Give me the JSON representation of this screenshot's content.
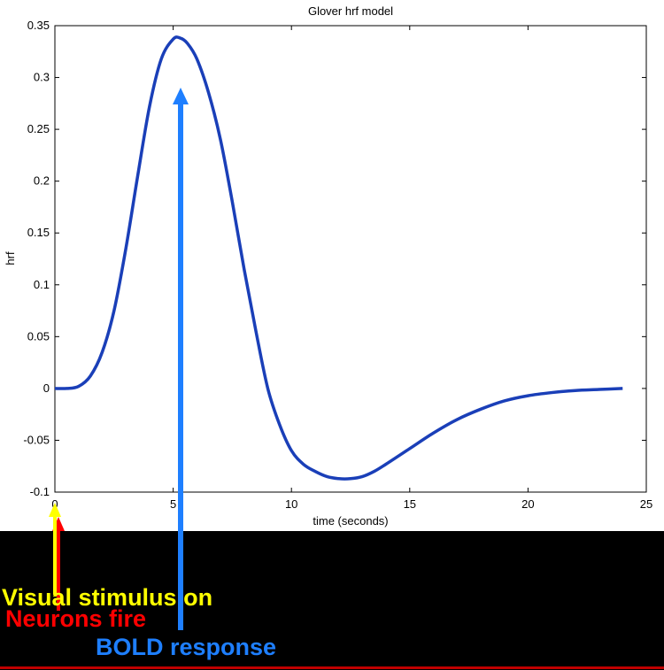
{
  "chart_data": {
    "type": "line",
    "title": "Glover hrf model",
    "xlabel": "time (seconds)",
    "ylabel": "hrf",
    "xlim": [
      0,
      25
    ],
    "ylim": [
      -0.1,
      0.35
    ],
    "grid": false,
    "x_ticks": [
      0,
      5,
      10,
      15,
      20,
      25
    ],
    "y_ticks": [
      -0.1,
      -0.05,
      0,
      0.05,
      0.1,
      0.15,
      0.2,
      0.25,
      0.3,
      0.35
    ],
    "x_tick_labels": [
      "0",
      "5",
      "10",
      "15",
      "20",
      "25"
    ],
    "y_tick_labels": [
      "-0.1",
      "-0.05",
      "0",
      "0.05",
      "0.1",
      "0.15",
      "0.2",
      "0.25",
      "0.3",
      "0.35"
    ],
    "series": [
      {
        "color": "#1a3fb8",
        "x": [
          0,
          0.5,
          1,
          1.5,
          2,
          2.5,
          3,
          3.5,
          4,
          4.5,
          5,
          5.3,
          5.6,
          6,
          6.5,
          7,
          7.5,
          8,
          8.5,
          9,
          9.5,
          10,
          10.5,
          11,
          11.5,
          12,
          12.5,
          13,
          13.5,
          14,
          15,
          16,
          17,
          18,
          19,
          20,
          21,
          22,
          23,
          24
        ],
        "y": [
          0,
          0,
          0.002,
          0.012,
          0.035,
          0.075,
          0.135,
          0.205,
          0.272,
          0.318,
          0.337,
          0.338,
          0.333,
          0.318,
          0.285,
          0.24,
          0.18,
          0.115,
          0.055,
          0.0,
          -0.035,
          -0.06,
          -0.073,
          -0.08,
          -0.085,
          -0.087,
          -0.087,
          -0.085,
          -0.08,
          -0.073,
          -0.058,
          -0.043,
          -0.03,
          -0.02,
          -0.012,
          -0.007,
          -0.004,
          -0.002,
          -0.001,
          0
        ]
      }
    ]
  },
  "annotations": {
    "stimulus": {
      "label": "Visual stimulus on",
      "color": "#ffff00"
    },
    "neurons": {
      "label": "Neurons fire",
      "color": "#ff0000"
    },
    "bold": {
      "label": "BOLD response",
      "color": "#1e7fff"
    }
  }
}
